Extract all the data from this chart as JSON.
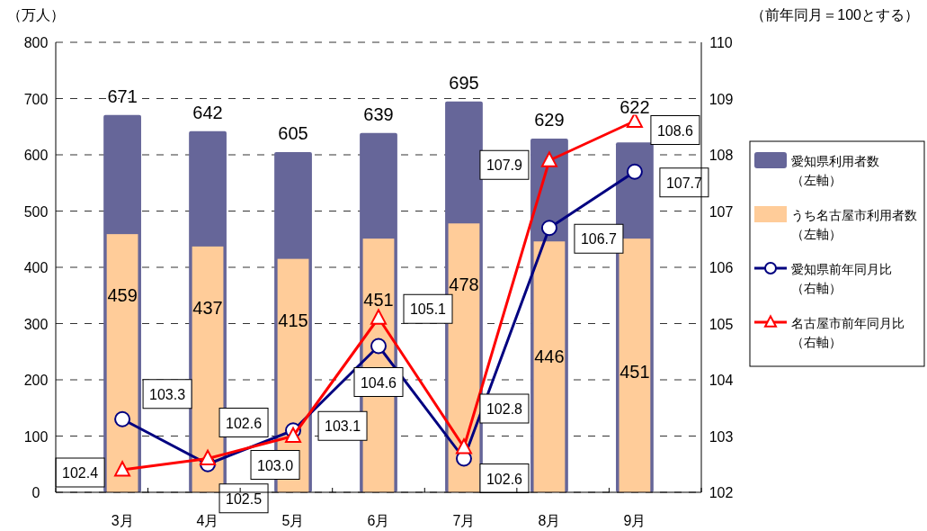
{
  "chart_data": {
    "type": "bar",
    "ylabel": "（万人）",
    "y2label": "（前年同月＝100とする）",
    "categories": [
      "3月",
      "4月",
      "5月",
      "6月",
      "7月",
      "8月",
      "9月"
    ],
    "series": [
      {
        "name": "愛知県利用者数（左軸）",
        "color": "#666699",
        "values": [
          671,
          642,
          605,
          639,
          695,
          629,
          622
        ]
      },
      {
        "name": "うち名古屋市利用者数（左軸）",
        "color": "#ffcc99",
        "values": [
          459,
          437,
          415,
          451,
          478,
          446,
          451
        ]
      },
      {
        "type": "line",
        "axis": "y2",
        "name": "愛知県前年同月比（右軸）",
        "color": "#000080",
        "marker": "circle",
        "values": [
          103.3,
          102.5,
          103.1,
          104.6,
          102.6,
          106.7,
          107.7
        ],
        "value_labels": [
          "103.3",
          "102.5",
          "103.1",
          "104.6",
          "102.6",
          "106.7",
          "107.7"
        ]
      },
      {
        "type": "line",
        "axis": "y2",
        "name": "名古屋市前年同月比（右軸）",
        "color": "#ff0000",
        "marker": "triangle",
        "values": [
          102.4,
          102.6,
          103.0,
          105.1,
          102.8,
          107.9,
          108.6
        ],
        "value_labels": [
          "102.4",
          "102.6",
          "103.0",
          "105.1",
          "102.8",
          "107.9",
          "108.6"
        ]
      }
    ],
    "ylim": [
      0,
      800
    ],
    "yticks": [
      0,
      100,
      200,
      300,
      400,
      500,
      600,
      700,
      800
    ],
    "y2lim": [
      102,
      110
    ],
    "y2ticks": [
      102,
      103,
      104,
      105,
      106,
      107,
      108,
      109,
      110
    ],
    "grid": "y",
    "legend": "right",
    "data_labels": true
  }
}
